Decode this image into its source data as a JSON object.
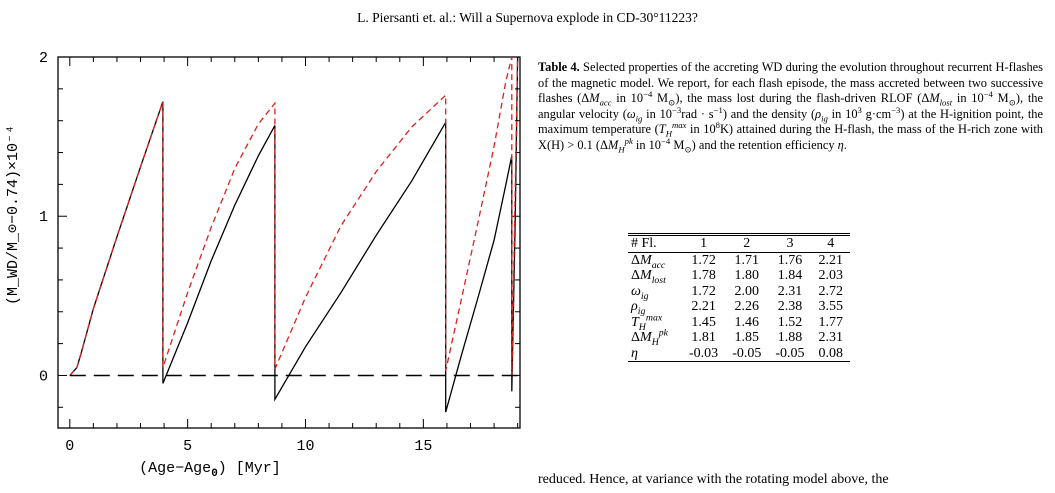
{
  "running_head": "L. Piersanti et. al.: Will a Supernova explode in CD-30°11223?",
  "chart_data": {
    "type": "line",
    "xlabel_main": "(Age−Age",
    "xlabel_sub": "0",
    "xlabel_tail": ") [Myr]",
    "ylabel": "(M_WD/M_⊙−0.74)×10⁻⁴",
    "xlim": [
      -0.5,
      19.1
    ],
    "ylim": [
      -0.33,
      2.0
    ],
    "x_ticks": [
      "0",
      "5",
      "10",
      "15"
    ],
    "y_ticks": [
      "0",
      "1",
      "2"
    ],
    "series": [
      {
        "style": "solid",
        "color": "#000000",
        "x": [
          0,
          0.3,
          0.5,
          1.0,
          2.0,
          3.0,
          3.95,
          3.95,
          5.0,
          6.0,
          7.0,
          8.0,
          8.7,
          8.7,
          10.0,
          11.5,
          13.0,
          14.5,
          15.95,
          15.95,
          16.6,
          17.3,
          18.0,
          18.5,
          18.75,
          18.75,
          18.9,
          19.0
        ],
        "y": [
          0,
          0.05,
          0.15,
          0.42,
          0.87,
          1.31,
          1.72,
          -0.05,
          0.33,
          0.72,
          1.07,
          1.38,
          1.57,
          -0.15,
          0.18,
          0.52,
          0.88,
          1.22,
          1.59,
          -0.23,
          0.12,
          0.48,
          0.85,
          1.2,
          1.38,
          -0.1,
          1.0,
          2.0
        ]
      },
      {
        "style": "dashed",
        "color": "#e0201b",
        "x": [
          0,
          0.3,
          0.5,
          1.0,
          2.0,
          3.0,
          3.95,
          3.95,
          5.0,
          6.0,
          7.0,
          8.0,
          8.7,
          8.7,
          10.0,
          11.5,
          13.0,
          14.5,
          15.95,
          15.95,
          16.6,
          17.3,
          18.0,
          18.5,
          18.75,
          18.75,
          18.9,
          19.0
        ],
        "y": [
          0,
          0.05,
          0.15,
          0.42,
          0.87,
          1.31,
          1.72,
          0.05,
          0.52,
          0.93,
          1.3,
          1.58,
          1.71,
          0.04,
          0.49,
          0.94,
          1.28,
          1.56,
          1.76,
          0.03,
          0.47,
          0.95,
          1.44,
          1.85,
          2.0,
          0.0,
          1.2,
          2.0
        ]
      },
      {
        "style": "long-dash",
        "color": "#000000",
        "x": [
          0,
          19.0
        ],
        "y": [
          0,
          0
        ]
      }
    ]
  },
  "caption": {
    "label": "Table 4.",
    "html": " Selected properties of the accreting WD during the evolution throughout recurrent H-flashes of the magnetic model. We report, for each flash episode, the mass accreted between two successive flashes (Δ<i>M<sub>acc</sub></i> in 10<sup>−4</sup> M<sub>⊙</sub>), the mass lost during the flash-driven RLOF (Δ<i>M<sub>lost</sub></i> in 10<sup>−4</sup> M<sub>⊙</sub>), the angular velocity (<i>ω<sub>ig</sub></i> in 10<sup>−3</sup>rad · s<sup>−1</sup>) and the density (<i>ρ<sub>ig</sub></i> in 10<sup>3</sup> g·cm<sup>−3</sup>) at the H-ignition point, the maximum temperature (<i>T<sub>H</sub><sup>max</sup></i> in 10<sup>8</sup>K) attained during the H-flash, the mass of the H-rich zone with X(H) &gt; 0.1 (Δ<i>M<sub>H</sub><sup>pk</sup></i> in 10<sup>−4</sup> M<sub>⊙</sub>) and the retention efficiency <i>η</i>."
  },
  "table": {
    "headers": [
      "# Fl.",
      "1",
      "2",
      "3",
      "4"
    ],
    "rows": [
      {
        "label_html": "Δ<i>M<sub>acc</sub></i>",
        "values": [
          "1.72",
          "1.71",
          "1.76",
          "2.21"
        ]
      },
      {
        "label_html": "Δ<i>M<sub>lost</sub></i>",
        "values": [
          "1.78",
          "1.80",
          "1.84",
          "2.03"
        ]
      },
      {
        "label_html": "<i>ω<sub>ig</sub></i>",
        "values": [
          "1.72",
          "2.00",
          "2.31",
          "2.72"
        ]
      },
      {
        "label_html": "<i>ρ<sub>ig</sub></i>",
        "values": [
          "2.21",
          "2.26",
          "2.38",
          "3.55"
        ]
      },
      {
        "label_html": "<i>T<sub>H</sub><sup>max</sup></i>",
        "values": [
          "1.45",
          "1.46",
          "1.52",
          "1.77"
        ]
      },
      {
        "label_html": "Δ<i>M<sub>H</sub><sup>pk</sup></i>",
        "values": [
          "1.81",
          "1.85",
          "1.88",
          "2.31"
        ]
      },
      {
        "label_html": "<i>η</i>",
        "values": [
          "-0.03",
          "-0.05",
          "-0.05",
          "0.08"
        ]
      }
    ]
  },
  "body_text": "reduced. Hence, at variance with the rotating model above, the"
}
